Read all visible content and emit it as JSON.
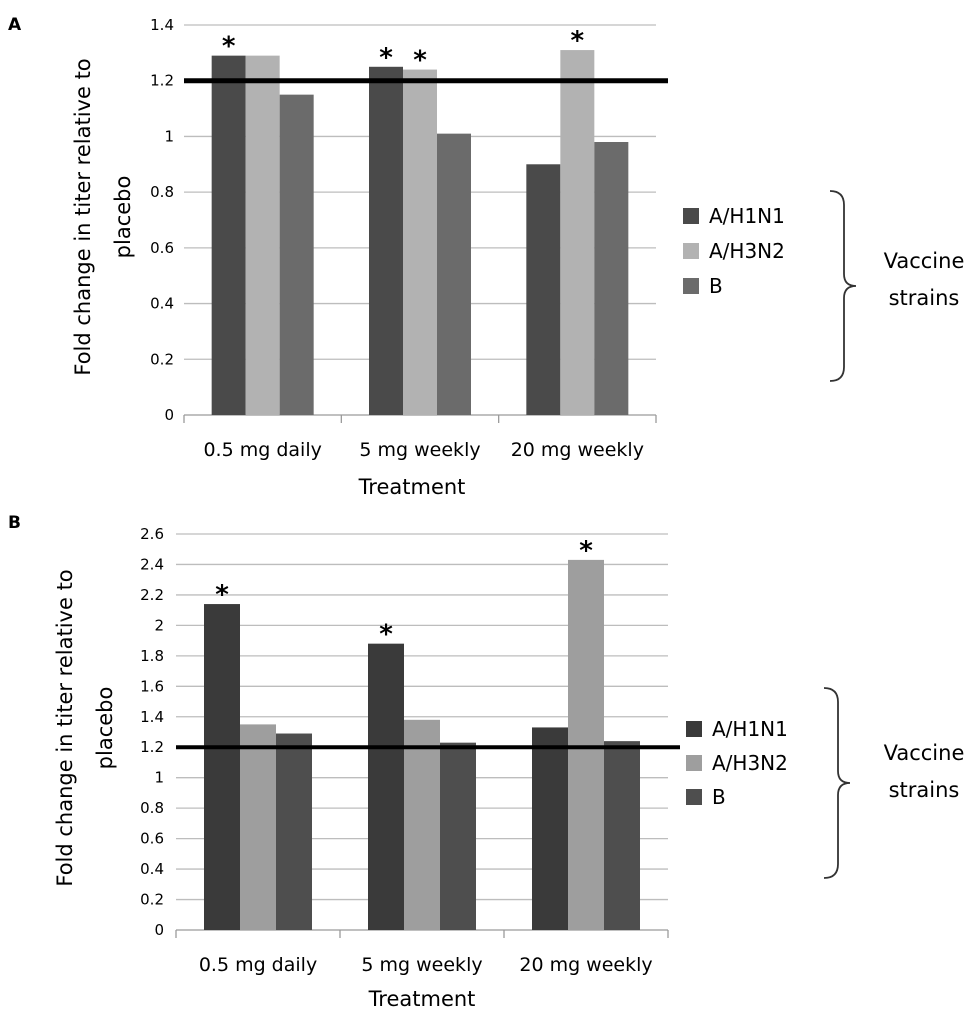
{
  "chart_data": [
    {
      "type": "bar",
      "panel": "A",
      "categories": [
        "0.5 mg daily",
        "5 mg weekly",
        "20 mg weekly"
      ],
      "series": [
        {
          "name": "A/H1N1",
          "values": [
            1.29,
            1.25,
            0.9
          ],
          "color": "#4a4a4a"
        },
        {
          "name": "A/H3N2",
          "values": [
            1.29,
            1.24,
            1.31
          ],
          "color": "#b2b2b2"
        },
        {
          "name": "B",
          "values": [
            1.15,
            1.01,
            0.98
          ],
          "color": "#6b6b6b"
        }
      ],
      "significant": [
        [
          true,
          false,
          false
        ],
        [
          true,
          true,
          false
        ],
        [
          false,
          true,
          false
        ]
      ],
      "significance_marker": "*",
      "reference_line": 1.2,
      "xlabel": "Treatment",
      "ylabel_lines": [
        "Fold change in titer relative to",
        "placebo"
      ],
      "ylim": [
        0,
        1.4
      ],
      "yticks": [
        "0",
        "0.2",
        "0.4",
        "0.6",
        "0.8",
        "1",
        "1.2",
        "1.4"
      ],
      "grid": true,
      "legend_position": "right",
      "bracket_label_lines": [
        "Vaccine",
        "strains"
      ]
    },
    {
      "type": "bar",
      "panel": "B",
      "categories": [
        "0.5 mg daily",
        "5 mg weekly",
        "20 mg weekly"
      ],
      "series": [
        {
          "name": "A/H1N1",
          "values": [
            2.14,
            1.88,
            1.33
          ],
          "color": "#3a3a3a"
        },
        {
          "name": "A/H3N2",
          "values": [
            1.35,
            1.38,
            2.43
          ],
          "color": "#9e9e9e"
        },
        {
          "name": "B",
          "values": [
            1.29,
            1.23,
            1.24
          ],
          "color": "#4e4e4e"
        }
      ],
      "significant": [
        [
          true,
          false,
          false
        ],
        [
          true,
          false,
          false
        ],
        [
          false,
          true,
          false
        ]
      ],
      "significance_marker": "*",
      "reference_line": 1.2,
      "xlabel": "Treatment",
      "ylabel_lines": [
        "Fold change in titer relative to",
        "placebo"
      ],
      "ylim": [
        0,
        2.6
      ],
      "yticks": [
        "0",
        "0.2",
        "0.4",
        "0.6",
        "0.8",
        "1",
        "1.2",
        "1.4",
        "1.6",
        "1.8",
        "2",
        "2.2",
        "2.4",
        "2.6"
      ],
      "grid": true,
      "legend_position": "right",
      "bracket_label_lines": [
        "Vaccine",
        "strains"
      ]
    }
  ]
}
